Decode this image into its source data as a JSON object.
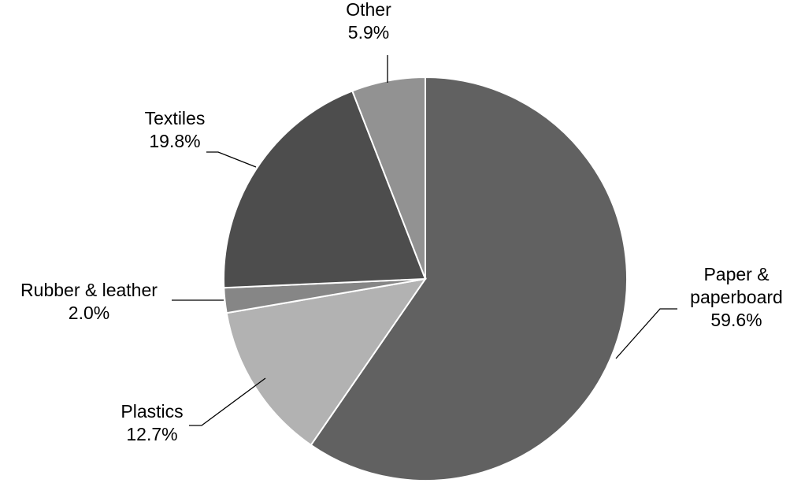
{
  "chart_data": {
    "type": "pie",
    "start_angle_deg": 0,
    "direction": "clockwise",
    "slices": [
      {
        "label_lines": [
          "Paper &",
          "paperboard"
        ],
        "value": 59.6,
        "value_label": "59.6%",
        "color": "#616161"
      },
      {
        "label_lines": [
          "Plastics"
        ],
        "value": 12.7,
        "value_label": "12.7%",
        "color": "#b2b2b2"
      },
      {
        "label_lines": [
          "Rubber & leather"
        ],
        "value": 2.0,
        "value_label": "2.0%",
        "color": "#868686"
      },
      {
        "label_lines": [
          "Textiles"
        ],
        "value": 19.8,
        "value_label": "19.8%",
        "color": "#4d4d4d"
      },
      {
        "label_lines": [
          "Other"
        ],
        "value": 5.9,
        "value_label": "5.9%",
        "color": "#929292"
      }
    ]
  }
}
